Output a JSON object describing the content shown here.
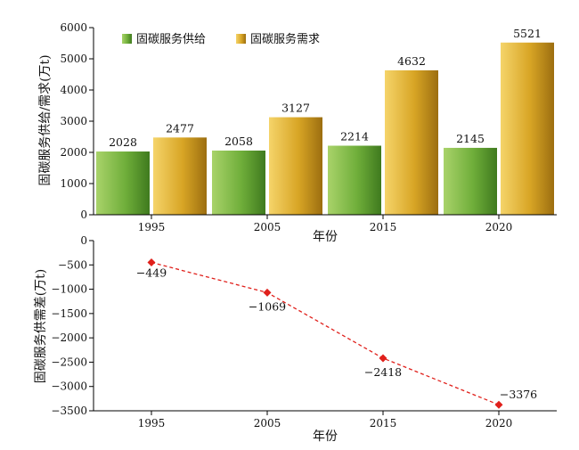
{
  "chart_data": [
    {
      "type": "bar",
      "categories": [
        "1995",
        "2005",
        "2015",
        "2020"
      ],
      "series": [
        {
          "name": "固碳服务供给",
          "values": [
            2028,
            2058,
            2214,
            2145
          ],
          "color": "#6fae3a"
        },
        {
          "name": "固碳服务需求",
          "values": [
            2477,
            3127,
            4632,
            5521
          ],
          "color": "#d8a525"
        }
      ],
      "xlabel": "年份",
      "ylabel": "固碳服务供给/需求(万t)",
      "ylim": [
        0,
        6000
      ],
      "yticks": [
        0,
        1000,
        2000,
        3000,
        4000,
        5000,
        6000
      ],
      "legend_position": "top-left",
      "grid": false
    },
    {
      "type": "line",
      "x": [
        "1995",
        "2005",
        "2015",
        "2020"
      ],
      "series": [
        {
          "values": [
            -449,
            -1069,
            -2418,
            -3376
          ],
          "color": "#e0201b"
        }
      ],
      "data_labels": [
        "−449",
        "−1069",
        "−2418",
        "−3376"
      ],
      "xlabel": "年份",
      "ylabel": "固碳服务供需差(万t)",
      "ylim": [
        -3500,
        0
      ],
      "yticks": [
        0,
        -500,
        -1000,
        -1500,
        -2000,
        -2500,
        -3000,
        -3500
      ],
      "line_style": "dashed",
      "marker": "diamond",
      "grid": false
    }
  ]
}
